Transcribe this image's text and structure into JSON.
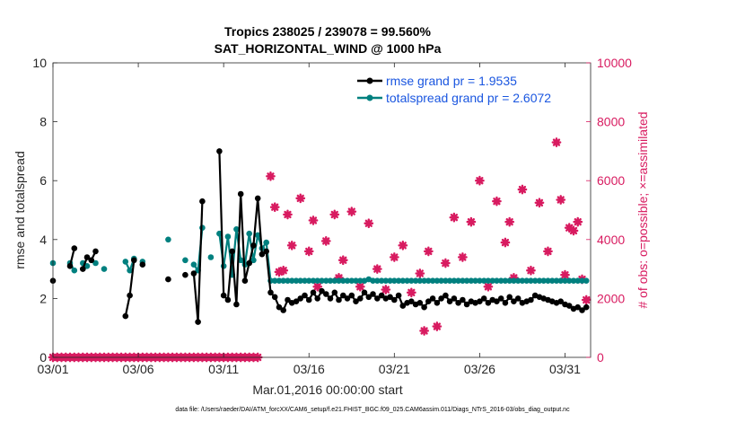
{
  "chart_data": {
    "type": "line",
    "title_line1": "Tropics 238025 / 239078 = 99.560%",
    "title_line2": "SAT_HORIZONTAL_WIND @ 1000 hPa",
    "xlabel": "Mar.01,2016 00:00:00 start",
    "ylabel_left": "rmse and totalspread",
    "ylabel_right": "# of obs: o=possible; ×=assimilated",
    "footer": "data file: /Users/raeder/DAI/ATM_forcXX/CAM6_setup/f.e21.FHIST_BGC.f09_025.CAM6assim.011/Diags_NTrS_2016-03/obs_diag_output.nc",
    "xlim": [
      0,
      31.5
    ],
    "ylim_left": [
      0,
      10
    ],
    "ylim_right": [
      0,
      10000
    ],
    "x_ticks": [
      0,
      5,
      10,
      15,
      20,
      25,
      30
    ],
    "x_tick_labels": [
      "03/01",
      "03/06",
      "03/11",
      "03/16",
      "03/21",
      "03/26",
      "03/31"
    ],
    "y_left_ticks": [
      "0",
      "2",
      "4",
      "6",
      "8",
      "10"
    ],
    "y_right_ticks": [
      "0",
      "2000",
      "4000",
      "6000",
      "8000",
      "10000"
    ],
    "colors": {
      "rmse": "#000000",
      "spread": "#00807f",
      "obs": "#d81b60",
      "axis": "#262626"
    },
    "legend": [
      {
        "label": "rmse grand pr = 1.9535",
        "color": "#000000"
      },
      {
        "label": "totalspread grand pr = 2.6072",
        "color": "#00807f"
      }
    ],
    "series_rmse": [
      [
        0,
        2.6
      ],
      [
        1,
        3.1
      ],
      [
        1.25,
        3.7
      ],
      [
        1.75,
        3.0
      ],
      [
        2,
        3.4
      ],
      [
        2.25,
        3.3
      ],
      [
        2.5,
        3.6
      ],
      [
        4.25,
        1.4
      ],
      [
        4.5,
        2.1
      ],
      [
        4.75,
        3.3
      ],
      [
        5.25,
        3.15
      ],
      [
        6.75,
        2.65
      ],
      [
        7.75,
        2.8
      ],
      [
        8.25,
        2.85
      ],
      [
        8.5,
        1.2
      ],
      [
        8.75,
        5.3
      ],
      [
        9.75,
        7.0
      ],
      [
        10,
        2.1
      ],
      [
        10.25,
        1.95
      ],
      [
        10.5,
        3.6
      ],
      [
        10.75,
        1.8
      ],
      [
        11,
        5.55
      ],
      [
        11.25,
        2.6
      ],
      [
        11.5,
        3.2
      ],
      [
        11.75,
        3.8
      ],
      [
        12,
        5.4
      ],
      [
        12.25,
        3.5
      ],
      [
        12.5,
        3.6
      ],
      [
        12.75,
        2.2
      ],
      [
        13,
        2.05
      ],
      [
        13.25,
        1.7
      ],
      [
        13.5,
        1.6
      ],
      [
        13.75,
        1.95
      ],
      [
        14,
        1.85
      ],
      [
        14.25,
        1.9
      ],
      [
        14.5,
        2.0
      ],
      [
        14.75,
        2.1
      ],
      [
        15,
        1.95
      ],
      [
        15.25,
        2.2
      ],
      [
        15.5,
        2.0
      ],
      [
        15.75,
        2.25
      ],
      [
        16,
        2.15
      ],
      [
        16.25,
        2.0
      ],
      [
        16.5,
        2.2
      ],
      [
        16.75,
        1.95
      ],
      [
        17,
        2.1
      ],
      [
        17.25,
        2.0
      ],
      [
        17.5,
        2.1
      ],
      [
        17.75,
        1.9
      ],
      [
        18,
        2.0
      ],
      [
        18.25,
        2.2
      ],
      [
        18.5,
        2.05
      ],
      [
        18.75,
        2.15
      ],
      [
        19,
        2.0
      ],
      [
        19.25,
        2.1
      ],
      [
        19.5,
        2.0
      ],
      [
        19.75,
        2.05
      ],
      [
        20,
        1.95
      ],
      [
        20.25,
        2.1
      ],
      [
        20.5,
        1.75
      ],
      [
        20.75,
        1.85
      ],
      [
        21,
        1.9
      ],
      [
        21.25,
        1.8
      ],
      [
        21.5,
        1.85
      ],
      [
        21.75,
        1.7
      ],
      [
        22,
        1.9
      ],
      [
        22.25,
        2.0
      ],
      [
        22.5,
        1.85
      ],
      [
        22.75,
        2.0
      ],
      [
        23,
        2.1
      ],
      [
        23.25,
        1.9
      ],
      [
        23.5,
        2.0
      ],
      [
        23.75,
        1.85
      ],
      [
        24,
        1.95
      ],
      [
        24.25,
        1.8
      ],
      [
        24.5,
        1.9
      ],
      [
        24.75,
        1.85
      ],
      [
        25,
        1.9
      ],
      [
        25.25,
        2.0
      ],
      [
        25.5,
        1.85
      ],
      [
        25.75,
        1.95
      ],
      [
        26,
        1.9
      ],
      [
        26.25,
        2.0
      ],
      [
        26.5,
        1.85
      ],
      [
        26.75,
        2.05
      ],
      [
        27,
        1.9
      ],
      [
        27.25,
        2.0
      ],
      [
        27.5,
        1.85
      ],
      [
        27.75,
        1.9
      ],
      [
        28,
        1.95
      ],
      [
        28.25,
        2.1
      ],
      [
        28.5,
        2.05
      ],
      [
        28.75,
        2.0
      ],
      [
        29,
        1.95
      ],
      [
        29.25,
        1.9
      ],
      [
        29.5,
        1.85
      ],
      [
        29.75,
        1.9
      ],
      [
        30,
        1.8
      ],
      [
        30.25,
        1.75
      ],
      [
        30.5,
        1.65
      ],
      [
        30.75,
        1.7
      ],
      [
        31,
        1.6
      ],
      [
        31.25,
        1.7
      ]
    ],
    "series_spread": [
      [
        0,
        3.2
      ],
      [
        1,
        3.2
      ],
      [
        1.25,
        2.95
      ],
      [
        1.75,
        3.2
      ],
      [
        2,
        3.1
      ],
      [
        2.5,
        3.2
      ],
      [
        3,
        3.0
      ],
      [
        4.25,
        3.25
      ],
      [
        4.5,
        2.95
      ],
      [
        4.75,
        3.35
      ],
      [
        5.25,
        3.25
      ],
      [
        6.75,
        4.0
      ],
      [
        7.75,
        3.3
      ],
      [
        8.25,
        3.15
      ],
      [
        8.5,
        2.95
      ],
      [
        8.75,
        4.4
      ],
      [
        9.25,
        3.4
      ],
      [
        9.75,
        4.2
      ],
      [
        10,
        3.1
      ],
      [
        10.25,
        4.1
      ],
      [
        10.5,
        2.8
      ],
      [
        10.75,
        4.35
      ],
      [
        11,
        3.3
      ],
      [
        11.25,
        3.15
      ],
      [
        11.5,
        4.2
      ],
      [
        11.75,
        3.3
      ],
      [
        12,
        4.15
      ],
      [
        12.25,
        3.7
      ],
      [
        12.5,
        3.9
      ],
      [
        12.75,
        2.6
      ],
      [
        13,
        2.6
      ],
      [
        13.25,
        2.6
      ],
      [
        13.5,
        2.6
      ],
      [
        13.75,
        2.6
      ],
      [
        14,
        2.6
      ],
      [
        14.25,
        2.6
      ],
      [
        14.5,
        2.6
      ],
      [
        14.75,
        2.6
      ],
      [
        15,
        2.6
      ],
      [
        15.25,
        2.6
      ],
      [
        15.5,
        2.6
      ],
      [
        15.75,
        2.6
      ],
      [
        16,
        2.6
      ],
      [
        16.25,
        2.6
      ],
      [
        16.5,
        2.6
      ],
      [
        16.75,
        2.6
      ],
      [
        17,
        2.6
      ],
      [
        17.25,
        2.6
      ],
      [
        17.5,
        2.6
      ],
      [
        17.75,
        2.6
      ],
      [
        18,
        2.6
      ],
      [
        18.25,
        2.6
      ],
      [
        18.5,
        2.65
      ],
      [
        18.75,
        2.6
      ],
      [
        19,
        2.6
      ],
      [
        19.25,
        2.6
      ],
      [
        19.5,
        2.6
      ],
      [
        19.75,
        2.6
      ],
      [
        20,
        2.6
      ],
      [
        20.25,
        2.6
      ],
      [
        20.5,
        2.6
      ],
      [
        20.75,
        2.6
      ],
      [
        21,
        2.6
      ],
      [
        21.25,
        2.6
      ],
      [
        21.5,
        2.6
      ],
      [
        21.75,
        2.6
      ],
      [
        22,
        2.6
      ],
      [
        22.25,
        2.6
      ],
      [
        22.5,
        2.6
      ],
      [
        22.75,
        2.6
      ],
      [
        23,
        2.6
      ],
      [
        23.25,
        2.6
      ],
      [
        23.5,
        2.6
      ],
      [
        23.75,
        2.6
      ],
      [
        24,
        2.6
      ],
      [
        24.25,
        2.6
      ],
      [
        24.5,
        2.6
      ],
      [
        24.75,
        2.6
      ],
      [
        25,
        2.6
      ],
      [
        25.25,
        2.6
      ],
      [
        25.5,
        2.6
      ],
      [
        25.75,
        2.6
      ],
      [
        26,
        2.6
      ],
      [
        26.25,
        2.6
      ],
      [
        26.5,
        2.6
      ],
      [
        26.75,
        2.6
      ],
      [
        27,
        2.6
      ],
      [
        27.25,
        2.6
      ],
      [
        27.5,
        2.6
      ],
      [
        27.75,
        2.6
      ],
      [
        28,
        2.6
      ],
      [
        28.25,
        2.6
      ],
      [
        28.5,
        2.6
      ],
      [
        28.75,
        2.6
      ],
      [
        29,
        2.6
      ],
      [
        29.25,
        2.6
      ],
      [
        29.5,
        2.6
      ],
      [
        29.75,
        2.6
      ],
      [
        30,
        2.6
      ],
      [
        30.25,
        2.6
      ],
      [
        30.5,
        2.6
      ],
      [
        30.75,
        2.6
      ],
      [
        31,
        2.6
      ],
      [
        31.25,
        2.6
      ]
    ],
    "obs_zero_x": [
      0,
      0.25,
      0.5,
      0.75,
      1,
      1.25,
      1.5,
      1.75,
      2,
      2.25,
      2.5,
      2.75,
      3,
      3.25,
      3.5,
      3.75,
      4,
      4.25,
      4.5,
      4.75,
      5,
      5.25,
      5.5,
      5.75,
      6,
      6.25,
      6.5,
      6.75,
      7,
      7.25,
      7.5,
      7.75,
      8,
      8.25,
      8.5,
      8.75,
      9,
      9.25,
      9.5,
      9.75,
      10,
      10.25,
      10.5,
      10.75,
      11,
      11.25,
      11.5,
      11.75,
      12
    ],
    "obs_counts": [
      [
        12.75,
        6150
      ],
      [
        13.0,
        5100
      ],
      [
        13.25,
        2900
      ],
      [
        13.5,
        2950
      ],
      [
        13.75,
        4850
      ],
      [
        14.0,
        3800
      ],
      [
        14.5,
        5400
      ],
      [
        15.0,
        3600
      ],
      [
        15.25,
        4650
      ],
      [
        15.5,
        2400
      ],
      [
        16.0,
        3950
      ],
      [
        16.5,
        4850
      ],
      [
        16.75,
        2700
      ],
      [
        17.0,
        3300
      ],
      [
        17.5,
        4950
      ],
      [
        18.0,
        2400
      ],
      [
        18.5,
        4550
      ],
      [
        19.0,
        3000
      ],
      [
        19.5,
        2300
      ],
      [
        20.0,
        3400
      ],
      [
        20.5,
        3800
      ],
      [
        21.0,
        2200
      ],
      [
        21.5,
        2850
      ],
      [
        21.75,
        900
      ],
      [
        22.0,
        3600
      ],
      [
        22.5,
        1050
      ],
      [
        23.0,
        3200
      ],
      [
        23.5,
        4750
      ],
      [
        24.0,
        3400
      ],
      [
        24.5,
        4600
      ],
      [
        25.0,
        6000
      ],
      [
        25.5,
        2400
      ],
      [
        26.0,
        5300
      ],
      [
        26.5,
        3900
      ],
      [
        26.75,
        4600
      ],
      [
        27.0,
        2700
      ],
      [
        27.5,
        5700
      ],
      [
        28.0,
        2950
      ],
      [
        28.5,
        5250
      ],
      [
        29.0,
        3600
      ],
      [
        29.5,
        7300
      ],
      [
        29.75,
        5350
      ],
      [
        30.0,
        2800
      ],
      [
        30.25,
        4400
      ],
      [
        30.5,
        4300
      ],
      [
        30.75,
        4600
      ],
      [
        31.0,
        2650
      ],
      [
        31.25,
        1950
      ]
    ]
  }
}
